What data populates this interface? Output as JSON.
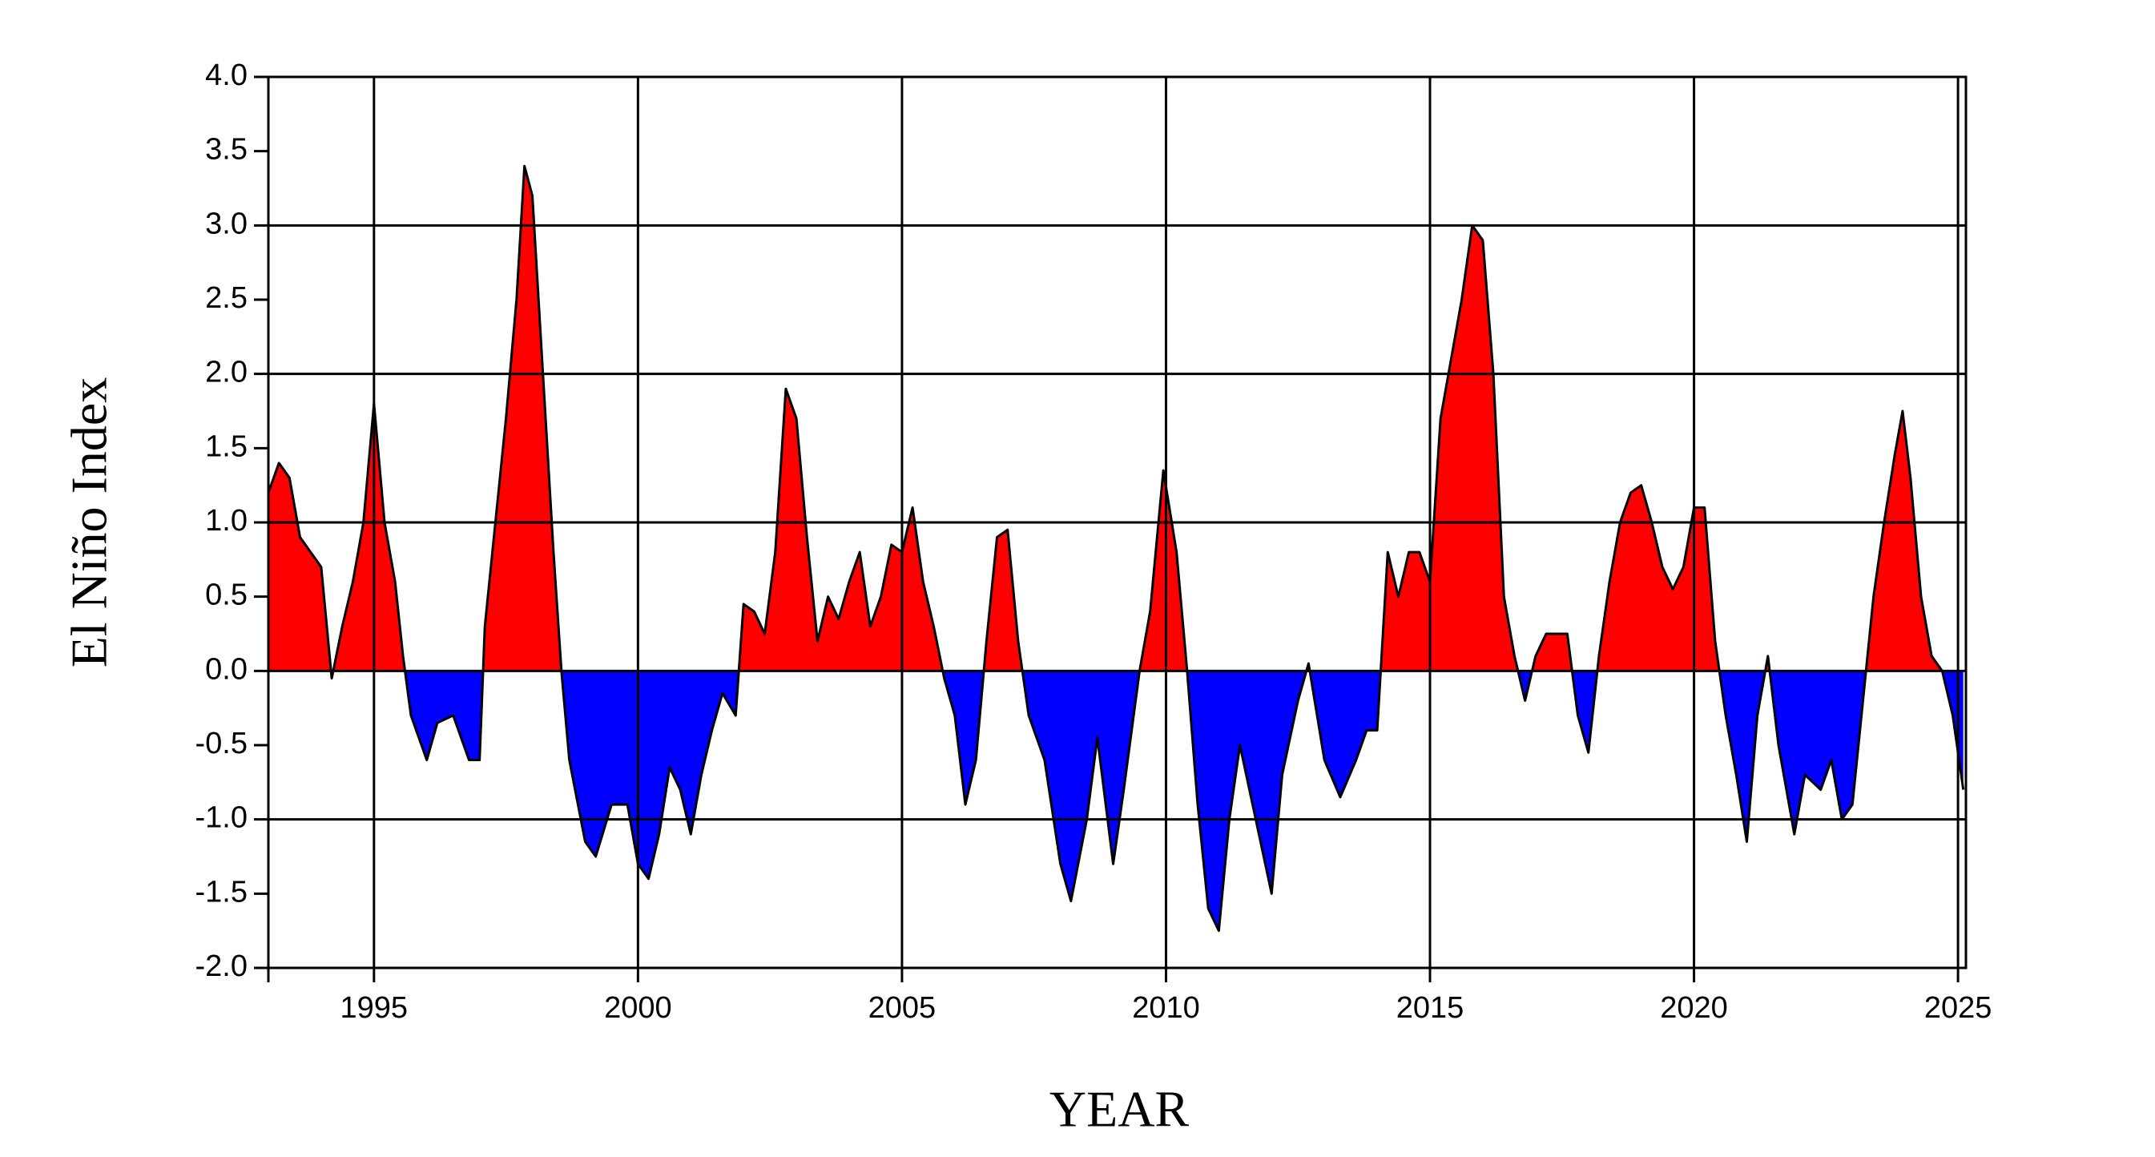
{
  "chart_data": {
    "type": "area",
    "x_label": "YEAR",
    "y_label": "El Niño Index",
    "xlim": [
      1993,
      2025.15
    ],
    "ylim": [
      -2,
      4
    ],
    "xticks": [
      1995,
      2000,
      2005,
      2010,
      2015,
      2020,
      2025
    ],
    "yticks": [
      {
        "value": 4,
        "label": "4.0"
      },
      {
        "value": 3.5,
        "label": "3.5"
      },
      {
        "value": 3,
        "label": "3.0"
      },
      {
        "value": 2.5,
        "label": "2.5"
      },
      {
        "value": 2,
        "label": "2.0"
      },
      {
        "value": 1.5,
        "label": "1.5"
      },
      {
        "value": 1,
        "label": "1.0"
      },
      {
        "value": 0.5,
        "label": "0.5"
      },
      {
        "value": 0,
        "label": "0.0"
      },
      {
        "value": -0.5,
        "label": "-0.5"
      },
      {
        "value": -1,
        "label": "-1.0"
      },
      {
        "value": -1.5,
        "label": "-1.5"
      },
      {
        "value": -2,
        "label": "-2.0"
      }
    ],
    "grid": true,
    "positive_color": "#ff0000",
    "negative_color": "#0000ff",
    "line_color": "#000000",
    "x": [
      1993.0,
      1993.2,
      1993.4,
      1993.6,
      1993.8,
      1994.0,
      1994.2,
      1994.4,
      1994.6,
      1994.8,
      1995.0,
      1995.2,
      1995.4,
      1995.55,
      1995.7,
      1996.0,
      1996.2,
      1996.5,
      1996.8,
      1997.0,
      1997.1,
      1997.3,
      1997.5,
      1997.7,
      1997.85,
      1998.0,
      1998.2,
      1998.4,
      1998.55,
      1998.7,
      1999.0,
      1999.2,
      1999.5,
      1999.8,
      2000.0,
      2000.2,
      2000.4,
      2000.6,
      2000.8,
      2001.0,
      2001.2,
      2001.4,
      2001.6,
      2001.85,
      2002.0,
      2002.2,
      2002.4,
      2002.6,
      2002.8,
      2003.0,
      2003.2,
      2003.4,
      2003.6,
      2003.8,
      2004.0,
      2004.2,
      2004.4,
      2004.6,
      2004.8,
      2005.0,
      2005.2,
      2005.4,
      2005.6,
      2005.8,
      2006.0,
      2006.2,
      2006.4,
      2006.6,
      2006.8,
      2007.0,
      2007.2,
      2007.4,
      2007.7,
      2008.0,
      2008.2,
      2008.5,
      2008.7,
      2009.0,
      2009.2,
      2009.5,
      2009.7,
      2009.95,
      2010.2,
      2010.4,
      2010.6,
      2010.8,
      2011.0,
      2011.2,
      2011.4,
      2011.7,
      2012.0,
      2012.2,
      2012.5,
      2012.7,
      2013.0,
      2013.3,
      2013.6,
      2013.8,
      2014.0,
      2014.2,
      2014.4,
      2014.6,
      2014.8,
      2015.0,
      2015.2,
      2015.4,
      2015.6,
      2015.8,
      2016.0,
      2016.2,
      2016.4,
      2016.6,
      2016.8,
      2017.0,
      2017.2,
      2017.4,
      2017.6,
      2017.8,
      2018.0,
      2018.2,
      2018.4,
      2018.6,
      2018.8,
      2019.0,
      2019.2,
      2019.4,
      2019.6,
      2019.8,
      2020.0,
      2020.2,
      2020.4,
      2020.6,
      2020.8,
      2021.0,
      2021.2,
      2021.4,
      2021.6,
      2021.9,
      2022.1,
      2022.4,
      2022.6,
      2022.8,
      2023.0,
      2023.2,
      2023.4,
      2023.6,
      2023.8,
      2023.95,
      2024.1,
      2024.3,
      2024.5,
      2024.7,
      2024.9,
      2025.1
    ],
    "values": [
      1.2,
      1.4,
      1.3,
      0.9,
      0.8,
      0.7,
      -0.05,
      0.3,
      0.6,
      1.0,
      1.8,
      1.0,
      0.6,
      0.1,
      -0.3,
      -0.6,
      -0.35,
      -0.3,
      -0.6,
      -0.6,
      0.3,
      1.0,
      1.7,
      2.5,
      3.4,
      3.2,
      2.0,
      0.8,
      0.0,
      -0.6,
      -1.15,
      -1.25,
      -0.9,
      -0.9,
      -1.3,
      -1.4,
      -1.1,
      -0.65,
      -0.8,
      -1.1,
      -0.7,
      -0.4,
      -0.15,
      -0.3,
      0.45,
      0.4,
      0.25,
      0.8,
      1.9,
      1.7,
      0.9,
      0.2,
      0.5,
      0.35,
      0.6,
      0.8,
      0.3,
      0.5,
      0.85,
      0.8,
      1.1,
      0.6,
      0.3,
      -0.05,
      -0.3,
      -0.9,
      -0.6,
      0.2,
      0.9,
      0.95,
      0.2,
      -0.3,
      -0.6,
      -1.3,
      -1.55,
      -1.0,
      -0.45,
      -1.3,
      -0.8,
      0.0,
      0.4,
      1.35,
      0.8,
      0.0,
      -0.9,
      -1.6,
      -1.75,
      -1.0,
      -0.5,
      -1.0,
      -1.5,
      -0.7,
      -0.2,
      0.05,
      -0.6,
      -0.85,
      -0.6,
      -0.4,
      -0.4,
      0.8,
      0.5,
      0.8,
      0.8,
      0.6,
      1.7,
      2.1,
      2.5,
      3.0,
      2.9,
      2.0,
      0.5,
      0.1,
      -0.2,
      0.1,
      0.25,
      0.25,
      0.25,
      -0.3,
      -0.55,
      0.1,
      0.6,
      1.0,
      1.2,
      1.25,
      1.0,
      0.7,
      0.55,
      0.7,
      1.1,
      1.1,
      0.2,
      -0.3,
      -0.7,
      -1.15,
      -0.3,
      0.1,
      -0.5,
      -1.1,
      -0.7,
      -0.8,
      -0.6,
      -1.0,
      -0.9,
      -0.2,
      0.5,
      1.0,
      1.45,
      1.75,
      1.3,
      0.5,
      0.1,
      0.0,
      -0.3,
      -0.8
    ]
  }
}
